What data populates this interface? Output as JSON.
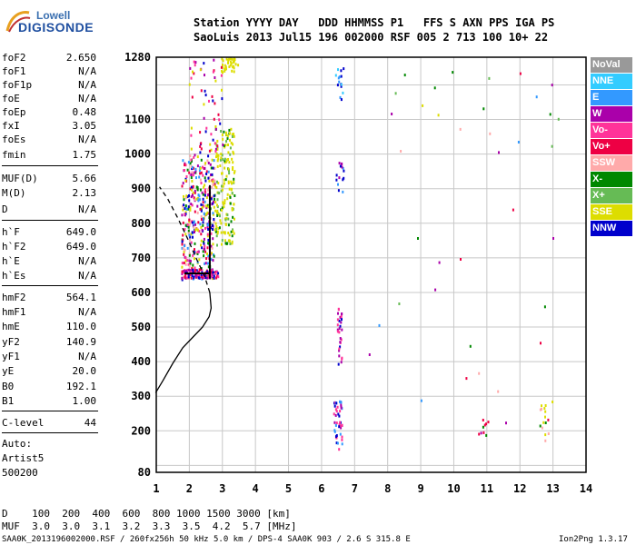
{
  "logo": {
    "line1": "Lowell",
    "line2": "DIGISONDE"
  },
  "header": {
    "row1": "Station YYYY DAY   DDD HHMMSS P1   FFS S AXN PPS IGA PS",
    "row2": "SaoLuis 2013 Jul15 196 002000 RSF 005 2 713 100 10+ 22"
  },
  "params_a": [
    {
      "label": "foF2",
      "value": "2.650"
    },
    {
      "label": "foF1",
      "value": "N/A"
    },
    {
      "label": "foF1p",
      "value": "N/A"
    },
    {
      "label": "foE",
      "value": "N/A"
    },
    {
      "label": "foEp",
      "value": "0.48"
    },
    {
      "label": "fxI",
      "value": "3.05"
    },
    {
      "label": "foEs",
      "value": "N/A"
    },
    {
      "label": "fmin",
      "value": "1.75"
    }
  ],
  "params_b": [
    {
      "label": "MUF(D)",
      "value": "5.66"
    },
    {
      "label": "M(D)",
      "value": "2.13"
    },
    {
      "label": "D",
      "value": "N/A"
    }
  ],
  "params_c": [
    {
      "label": "h`F",
      "value": "649.0"
    },
    {
      "label": "h`F2",
      "value": "649.0"
    },
    {
      "label": "h`E",
      "value": "N/A"
    },
    {
      "label": "h`Es",
      "value": "N/A"
    }
  ],
  "params_d": [
    {
      "label": "hmF2",
      "value": "564.1"
    },
    {
      "label": "hmF1",
      "value": "N/A"
    },
    {
      "label": "hmE",
      "value": "110.0"
    },
    {
      "label": "yF2",
      "value": "140.9"
    },
    {
      "label": "yF1",
      "value": "N/A"
    },
    {
      "label": "yE",
      "value": "20.0"
    },
    {
      "label": "B0",
      "value": "192.1"
    },
    {
      "label": "B1",
      "value": "1.00"
    }
  ],
  "clevel": {
    "label": "C-level",
    "value": "44"
  },
  "auto": [
    "Auto:",
    "Artist5",
    "500200"
  ],
  "legend": [
    {
      "label": "NoVal",
      "bg": "#999999",
      "fg": "#ffffff"
    },
    {
      "label": "NNE",
      "bg": "#33ccff",
      "fg": "#ffffff"
    },
    {
      "label": "E",
      "bg": "#3399ff",
      "fg": "#ffffff"
    },
    {
      "label": "W",
      "bg": "#aa00aa",
      "fg": "#ffffff"
    },
    {
      "label": "Vo-",
      "bg": "#ff3399",
      "fg": "#ffffff"
    },
    {
      "label": "Vo+",
      "bg": "#ee0044",
      "fg": "#ffffff"
    },
    {
      "label": "SSW",
      "bg": "#ffaaaa",
      "fg": "#ffffff"
    },
    {
      "label": "X-",
      "bg": "#008800",
      "fg": "#ffffff"
    },
    {
      "label": "X+",
      "bg": "#66bb55",
      "fg": "#ffffff"
    },
    {
      "label": "SSE",
      "bg": "#dddd00",
      "fg": "#ffffff"
    },
    {
      "label": "NNW",
      "bg": "#0000cc",
      "fg": "#ffffff"
    }
  ],
  "bottom": {
    "d_row": "D    100  200  400  600  800 1000 1500 3000 [km]",
    "muf_row": "MUF  3.0  3.0  3.1  3.2  3.3  3.5  4.2  5.7 [MHz]"
  },
  "footer": {
    "left": "SAA0K_2013196002000.RSF / 260fx256h 50 kHz 5.0 km / DPS-4 SAA0K 903 / 2.6 S 315.8 E",
    "right": "Ion2Png 1.3.17"
  },
  "chart_data": {
    "type": "scatter",
    "title": "",
    "xlabel": "",
    "ylabel": "",
    "xlim": [
      1,
      14
    ],
    "ylim": [
      80,
      1280
    ],
    "xticks": [
      1,
      2,
      3,
      4,
      5,
      6,
      7,
      8,
      9,
      10,
      11,
      12,
      13,
      14
    ],
    "yticks": [
      80,
      200,
      300,
      400,
      500,
      600,
      700,
      800,
      900,
      1000,
      1100,
      1280
    ],
    "grid": true,
    "profile": [
      [
        0.98,
        310
      ],
      [
        1.2,
        345
      ],
      [
        1.5,
        395
      ],
      [
        1.8,
        440
      ],
      [
        2.1,
        470
      ],
      [
        2.4,
        500
      ],
      [
        2.6,
        530
      ],
      [
        2.66,
        555
      ],
      [
        2.62,
        600
      ],
      [
        2.45,
        650
      ],
      [
        2.2,
        700
      ],
      [
        1.95,
        755
      ],
      [
        1.65,
        815
      ],
      [
        1.35,
        870
      ],
      [
        1.1,
        905
      ]
    ],
    "clusters": [
      {
        "name": "F-trace-main",
        "xr": [
          1.75,
          2.75
        ],
        "yr": [
          640,
          1000
        ],
        "n": 380,
        "colors": [
          "#aa00aa",
          "#ff3399",
          "#ee0044",
          "#0000cc",
          "#3399ff",
          "#008800",
          "#ffaaaa",
          "#dddd00"
        ]
      },
      {
        "name": "F-trace-base",
        "xr": [
          1.75,
          2.85
        ],
        "yr": [
          645,
          670
        ],
        "n": 120,
        "colors": [
          "#aa00aa",
          "#ee0044",
          "#0000cc",
          "#ff3399"
        ]
      },
      {
        "name": "SSE-column",
        "xr": [
          2.75,
          3.35
        ],
        "yr": [
          740,
          1080
        ],
        "n": 180,
        "colors": [
          "#dddd00",
          "#dddd00",
          "#dddd00",
          "#008800",
          "#66bb55"
        ]
      },
      {
        "name": "SSE-top",
        "xr": [
          2.95,
          3.45
        ],
        "yr": [
          1240,
          1280
        ],
        "n": 35,
        "colors": [
          "#dddd00"
        ]
      },
      {
        "name": "upper-spread",
        "xr": [
          1.95,
          3.0
        ],
        "yr": [
          1000,
          1280
        ],
        "n": 60,
        "colors": [
          "#aa00aa",
          "#0000cc",
          "#ff3399",
          "#dddd00",
          "#ee0044"
        ]
      },
      {
        "name": "col-6.5-low",
        "xr": [
          6.35,
          6.6
        ],
        "yr": [
          150,
          290
        ],
        "n": 45,
        "colors": [
          "#0000cc",
          "#aa00aa",
          "#3399ff",
          "#ff3399"
        ]
      },
      {
        "name": "col-6.5-mid",
        "xr": [
          6.45,
          6.6
        ],
        "yr": [
          380,
          560
        ],
        "n": 30,
        "colors": [
          "#aa00aa",
          "#ff3399",
          "#0000cc"
        ]
      },
      {
        "name": "col-6.5-high",
        "xr": [
          6.4,
          6.65
        ],
        "yr": [
          880,
          980
        ],
        "n": 15,
        "colors": [
          "#0000cc",
          "#3399ff",
          "#aa00aa"
        ]
      },
      {
        "name": "col-6.5-top",
        "xr": [
          6.4,
          6.65
        ],
        "yr": [
          1160,
          1260
        ],
        "n": 15,
        "colors": [
          "#3399ff",
          "#0000cc",
          "#33ccff"
        ]
      },
      {
        "name": "scatter-right",
        "xr": [
          7.4,
          13.2
        ],
        "yr": [
          170,
          1270
        ],
        "n": 40,
        "colors": [
          "#008800",
          "#ee0044",
          "#ffaaaa",
          "#dddd00",
          "#aa00aa",
          "#66bb55",
          "#3399ff"
        ]
      },
      {
        "name": "col-12.7",
        "xr": [
          12.55,
          12.85
        ],
        "yr": [
          170,
          280
        ],
        "n": 14,
        "colors": [
          "#008800",
          "#ee0044",
          "#dddd00",
          "#ffaaaa"
        ]
      },
      {
        "name": "col-11",
        "xr": [
          10.7,
          11.1
        ],
        "yr": [
          190,
          240
        ],
        "n": 8,
        "colors": [
          "#008800",
          "#ee0044",
          "#aa00aa"
        ]
      }
    ]
  }
}
